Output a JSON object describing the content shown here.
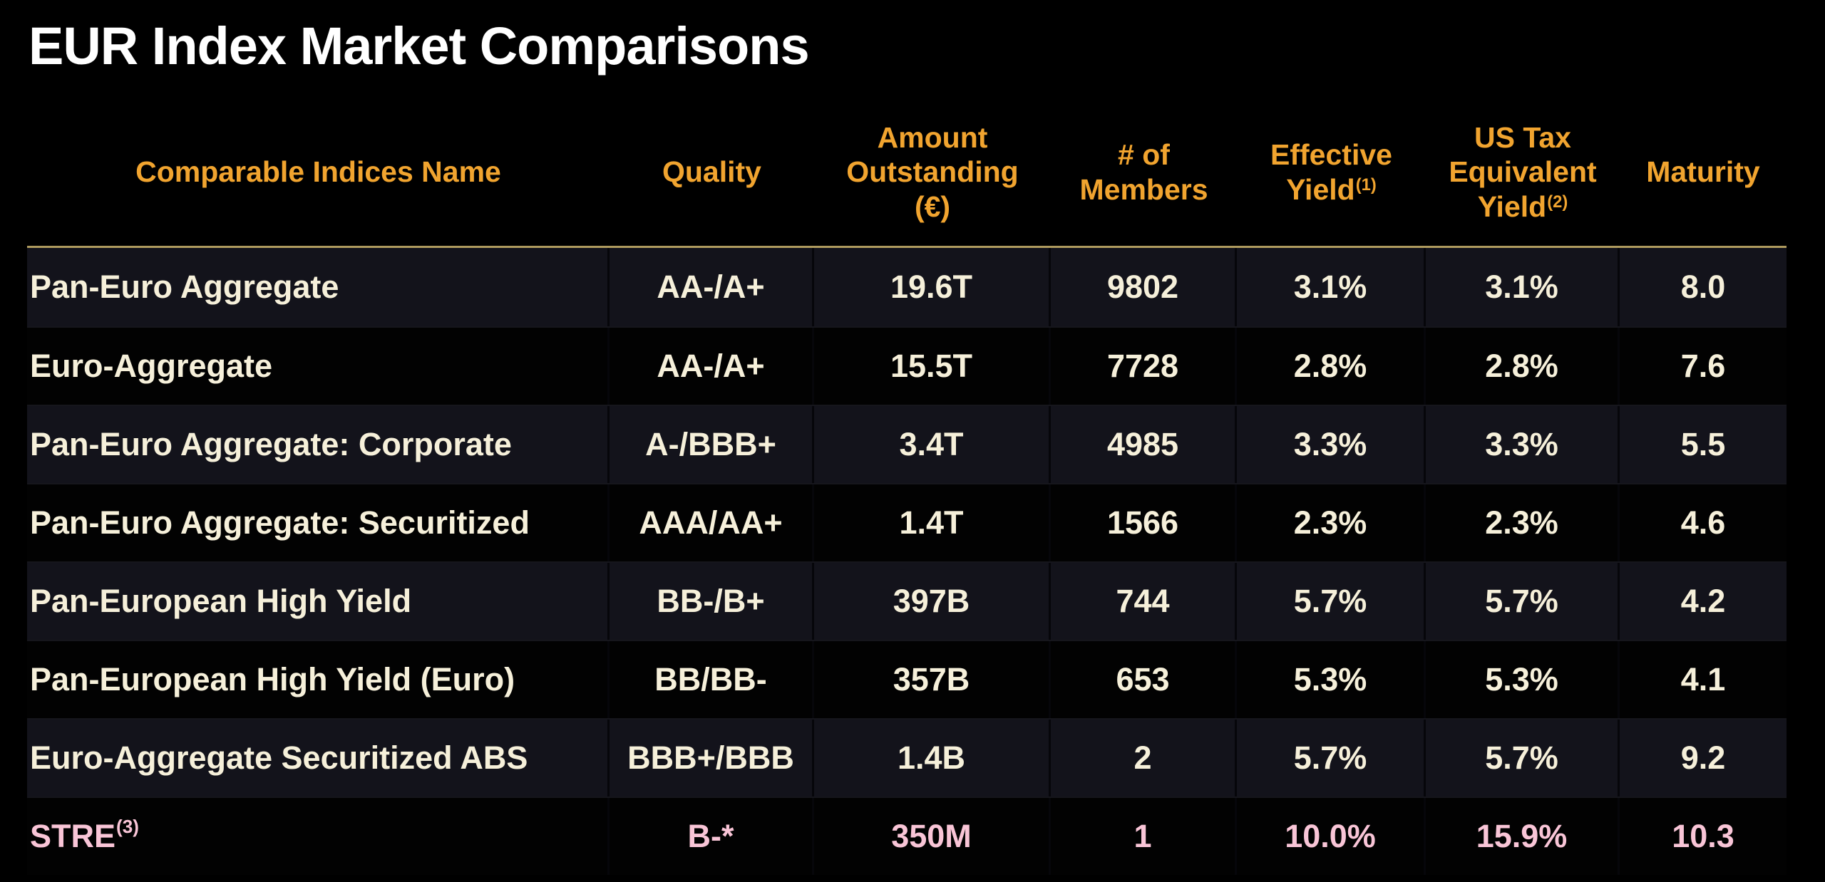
{
  "page": {
    "title": "EUR Index Market Comparisons",
    "background": "#000000"
  },
  "colors": {
    "title_text": "#FFFFFF",
    "header_text": "#F1A42F",
    "divider_line": "#AE9A5E",
    "body_text": "#F6F0DA",
    "highlight_text": "#F9C5D7",
    "stripe_row_bg": "#13131B",
    "dark_row_bg": "#020202"
  },
  "chart_data": {
    "type": "table",
    "title": "EUR Index Market Comparisons",
    "columns": [
      {
        "id": "name",
        "label": "Comparable Indices Name",
        "sup": ""
      },
      {
        "id": "quality",
        "label": "Quality",
        "sup": ""
      },
      {
        "id": "amount",
        "label": "Amount\nOutstanding\n(€)",
        "sup": ""
      },
      {
        "id": "members",
        "label": "# of\nMembers",
        "sup": ""
      },
      {
        "id": "effective_yield",
        "label": "Effective\nYield",
        "sup": "(1)"
      },
      {
        "id": "us_tax_yield",
        "label": "US Tax\nEquivalent\nYield",
        "sup": "(2)"
      },
      {
        "id": "maturity",
        "label": "Maturity",
        "sup": ""
      }
    ],
    "rows": [
      {
        "name": "Pan-Euro Aggregate",
        "name_sup": "",
        "quality": "AA-/A+",
        "amount": "19.6T",
        "members": "9802",
        "effective_yield": "3.1%",
        "us_tax_yield": "3.1%",
        "maturity": "8.0"
      },
      {
        "name": "Euro-Aggregate",
        "name_sup": "",
        "quality": "AA-/A+",
        "amount": "15.5T",
        "members": "7728",
        "effective_yield": "2.8%",
        "us_tax_yield": "2.8%",
        "maturity": "7.6"
      },
      {
        "name": "Pan-Euro Aggregate: Corporate",
        "name_sup": "",
        "quality": "A-/BBB+",
        "amount": "3.4T",
        "members": "4985",
        "effective_yield": "3.3%",
        "us_tax_yield": "3.3%",
        "maturity": "5.5"
      },
      {
        "name": "Pan-Euro Aggregate: Securitized",
        "name_sup": "",
        "quality": "AAA/AA+",
        "amount": "1.4T",
        "members": "1566",
        "effective_yield": "2.3%",
        "us_tax_yield": "2.3%",
        "maturity": "4.6"
      },
      {
        "name": "Pan-European High Yield",
        "name_sup": "",
        "quality": "BB-/B+",
        "amount": "397B",
        "members": "744",
        "effective_yield": "5.7%",
        "us_tax_yield": "5.7%",
        "maturity": "4.2"
      },
      {
        "name": "Pan-European High Yield (Euro)",
        "name_sup": "",
        "quality": "BB/BB-",
        "amount": "357B",
        "members": "653",
        "effective_yield": "5.3%",
        "us_tax_yield": "5.3%",
        "maturity": "4.1"
      },
      {
        "name": "Euro-Aggregate Securitized ABS",
        "name_sup": "",
        "quality": "BBB+/BBB",
        "amount": "1.4B",
        "members": "2",
        "effective_yield": "5.7%",
        "us_tax_yield": "5.7%",
        "maturity": "9.2"
      },
      {
        "name": "STRE",
        "name_sup": "(3)",
        "quality": "B-*",
        "amount": "350M",
        "members": "1",
        "effective_yield": "10.0%",
        "us_tax_yield": "15.9%",
        "maturity": "10.3"
      }
    ]
  }
}
